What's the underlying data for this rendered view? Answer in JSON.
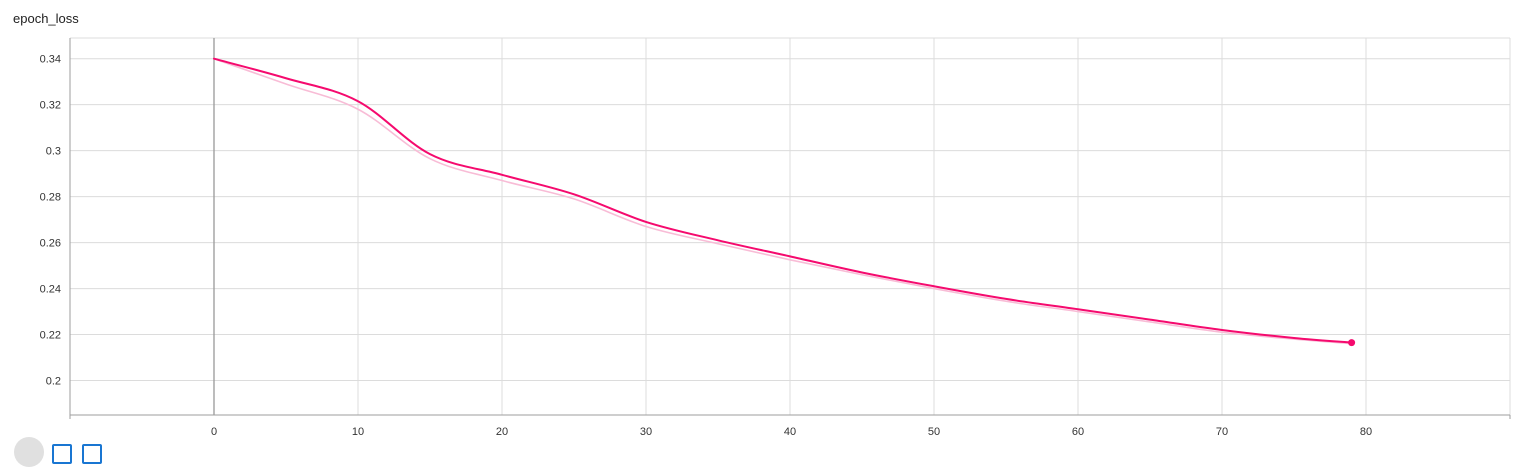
{
  "title": "epoch_loss",
  "colors": {
    "smoothed": "#f50a6e",
    "raw": "#f8bcd6",
    "grid": "#dcdcdc",
    "axis": "#9e9e9e",
    "zero_line": "#999999"
  },
  "icons": {
    "control_1": "circle-icon",
    "control_2": "square-icon",
    "control_3": "square-icon"
  },
  "chart_data": {
    "type": "line",
    "title": "epoch_loss",
    "xlabel": "",
    "ylabel": "",
    "xlim": [
      -10,
      90
    ],
    "ylim": [
      0.185,
      0.349
    ],
    "x_ticks": [
      0,
      10,
      20,
      30,
      40,
      50,
      60,
      70,
      80
    ],
    "y_ticks": [
      0.2,
      0.22,
      0.24,
      0.26,
      0.28,
      0.3,
      0.32,
      0.34
    ],
    "x_tick_labels": [
      "0",
      "10",
      "20",
      "30",
      "40",
      "50",
      "60",
      "70",
      "80"
    ],
    "y_tick_labels": [
      "0.2",
      "0.22",
      "0.24",
      "0.26",
      "0.28",
      "0.3",
      "0.32",
      "0.34"
    ],
    "grid": true,
    "legend": "none",
    "series": [
      {
        "role": "smoothed",
        "x": [
          0,
          5,
          10,
          15,
          20,
          25,
          30,
          35,
          40,
          45,
          50,
          55,
          60,
          65,
          70,
          75,
          79
        ],
        "values": [
          0.34,
          0.3315,
          0.3215,
          0.2985,
          0.2895,
          0.281,
          0.269,
          0.261,
          0.254,
          0.247,
          0.241,
          0.2355,
          0.231,
          0.2265,
          0.222,
          0.2185,
          0.2165
        ]
      },
      {
        "role": "raw",
        "x": [
          0,
          5,
          10,
          15,
          20,
          25,
          30,
          35,
          40,
          45,
          50,
          55,
          60,
          65,
          70,
          75,
          79
        ],
        "values": [
          0.34,
          0.329,
          0.318,
          0.2965,
          0.287,
          0.279,
          0.267,
          0.2595,
          0.2525,
          0.246,
          0.24,
          0.2345,
          0.23,
          0.2255,
          0.221,
          0.218,
          0.216
        ]
      }
    ]
  }
}
